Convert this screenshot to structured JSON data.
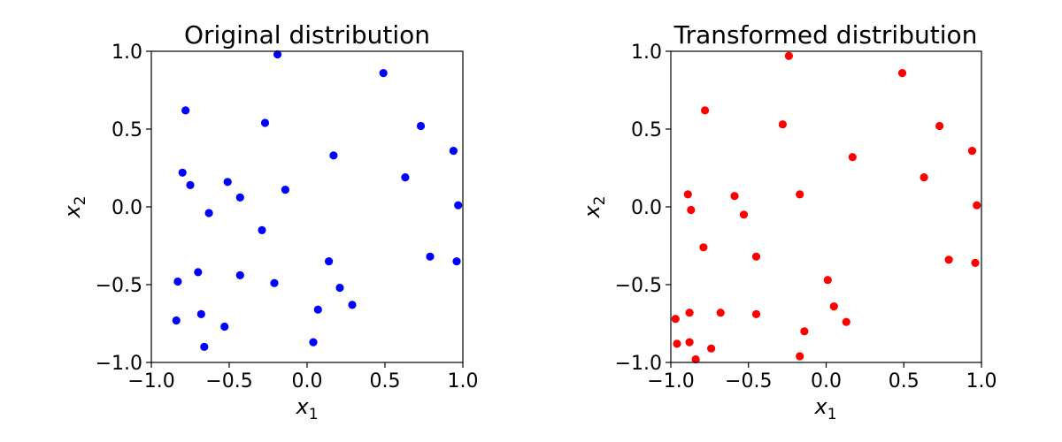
{
  "chart_data": [
    {
      "type": "scatter",
      "title": "Original distribution",
      "xlabel": {
        "base": "x",
        "sub": "1"
      },
      "ylabel": {
        "base": "x",
        "sub": "2"
      },
      "xlim": [
        -1.0,
        1.0
      ],
      "ylim": [
        -1.0,
        1.0
      ],
      "xticks": [
        -1.0,
        -0.5,
        0.0,
        0.5,
        1.0
      ],
      "yticks": [
        -1.0,
        -0.5,
        0.0,
        0.5,
        1.0
      ],
      "xtick_labels": [
        "−1.0",
        "−0.5",
        "0.0",
        "0.5",
        "1.0"
      ],
      "ytick_labels": [
        "−1.0",
        "−0.5",
        "0.0",
        "0.5",
        "1.0"
      ],
      "grid": false,
      "series": [
        {
          "color": "#0000ff",
          "points": [
            [
              -0.19,
              0.98
            ],
            [
              0.49,
              0.86
            ],
            [
              -0.78,
              0.62
            ],
            [
              -0.27,
              0.54
            ],
            [
              0.73,
              0.52
            ],
            [
              0.94,
              0.36
            ],
            [
              0.17,
              0.33
            ],
            [
              -0.8,
              0.22
            ],
            [
              0.63,
              0.19
            ],
            [
              -0.75,
              0.14
            ],
            [
              -0.51,
              0.16
            ],
            [
              -0.14,
              0.11
            ],
            [
              -0.43,
              0.06
            ],
            [
              0.97,
              0.01
            ],
            [
              -0.63,
              -0.04
            ],
            [
              -0.29,
              -0.15
            ],
            [
              0.79,
              -0.32
            ],
            [
              0.14,
              -0.35
            ],
            [
              0.96,
              -0.35
            ],
            [
              -0.7,
              -0.42
            ],
            [
              -0.43,
              -0.44
            ],
            [
              -0.83,
              -0.48
            ],
            [
              -0.21,
              -0.49
            ],
            [
              0.21,
              -0.52
            ],
            [
              0.29,
              -0.63
            ],
            [
              0.07,
              -0.66
            ],
            [
              -0.68,
              -0.69
            ],
            [
              -0.84,
              -0.73
            ],
            [
              -0.53,
              -0.77
            ],
            [
              0.04,
              -0.87
            ],
            [
              -0.66,
              -0.9
            ]
          ]
        }
      ]
    },
    {
      "type": "scatter",
      "title": "Transformed distribution",
      "xlabel": {
        "base": "x",
        "sub": "1"
      },
      "ylabel": {
        "base": "x",
        "sub": "2"
      },
      "xlim": [
        -1.0,
        1.0
      ],
      "ylim": [
        -1.0,
        1.0
      ],
      "xticks": [
        -1.0,
        -0.5,
        0.0,
        0.5,
        1.0
      ],
      "yticks": [
        -1.0,
        -0.5,
        0.0,
        0.5,
        1.0
      ],
      "xtick_labels": [
        "−1.0",
        "−0.5",
        "0.0",
        "0.5",
        "1.0"
      ],
      "ytick_labels": [
        "−1.0",
        "−0.5",
        "0.0",
        "0.5",
        "1.0"
      ],
      "grid": false,
      "series": [
        {
          "color": "#ff0000",
          "points": [
            [
              -0.24,
              0.97
            ],
            [
              0.49,
              0.86
            ],
            [
              -0.78,
              0.62
            ],
            [
              -0.28,
              0.53
            ],
            [
              0.73,
              0.52
            ],
            [
              0.94,
              0.36
            ],
            [
              0.17,
              0.32
            ],
            [
              0.63,
              0.19
            ],
            [
              -0.89,
              0.08
            ],
            [
              -0.59,
              0.07
            ],
            [
              -0.17,
              0.08
            ],
            [
              -0.87,
              -0.02
            ],
            [
              0.97,
              0.01
            ],
            [
              -0.53,
              -0.05
            ],
            [
              -0.79,
              -0.26
            ],
            [
              -0.45,
              -0.32
            ],
            [
              0.79,
              -0.34
            ],
            [
              0.96,
              -0.36
            ],
            [
              0.01,
              -0.47
            ],
            [
              0.05,
              -0.64
            ],
            [
              -0.88,
              -0.68
            ],
            [
              -0.68,
              -0.68
            ],
            [
              -0.45,
              -0.69
            ],
            [
              -0.97,
              -0.72
            ],
            [
              0.13,
              -0.74
            ],
            [
              -0.14,
              -0.8
            ],
            [
              -0.96,
              -0.88
            ],
            [
              -0.88,
              -0.87
            ],
            [
              -0.74,
              -0.91
            ],
            [
              -0.84,
              -0.98
            ],
            [
              -0.17,
              -0.96
            ]
          ]
        }
      ]
    }
  ]
}
